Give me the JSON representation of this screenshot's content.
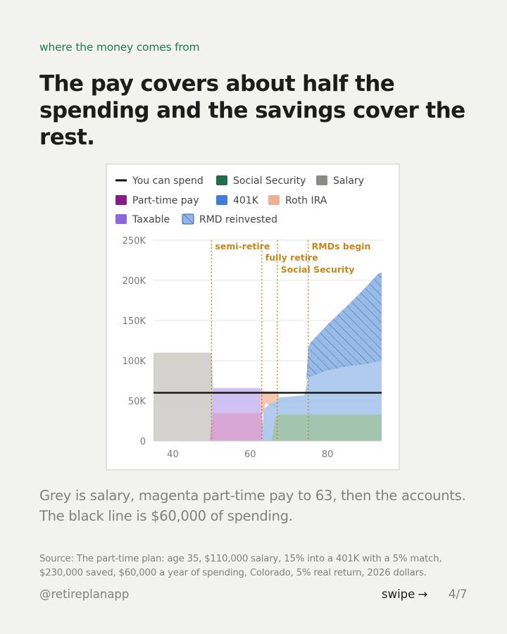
{
  "kicker": "where the money comes from",
  "headline": "The pay covers about half the spending and the savings cover the rest.",
  "caption": "Grey is salary, magenta part-time pay to 63, then the accounts. The black line is $60,000 of spending.",
  "source": "Source: The part-time plan: age 35, $110,000 salary, 15% into a 401K with a 5% match, $230,000 saved, $60,000 a year of spending, Colorado, 5% real return, 2026 dollars.",
  "footer": {
    "handle": "@retireplanapp",
    "swipe_label": "swipe",
    "swipe_arrow": "→",
    "page_indicator": "4/7"
  },
  "colors": {
    "accent_green": "#1f7a4c",
    "spend_line": "#111111",
    "social_security": "#9bbfa8",
    "salary": "#d0cecb",
    "part_time": "#d59fd0",
    "k401": "#a9c7ec",
    "roth": "#f3c2ad",
    "taxable": "#cbbcf3",
    "rmd": "#93b6e6",
    "marker": "#c8861a"
  },
  "chart_data": {
    "type": "area",
    "legend": [
      {
        "key": "spend",
        "label": "You can spend",
        "color": "#111111",
        "style": "line"
      },
      {
        "key": "social_security",
        "label": "Social Security",
        "color": "#226e4c",
        "style": "box"
      },
      {
        "key": "salary",
        "label": "Salary",
        "color": "#8b8a86",
        "style": "box"
      },
      {
        "key": "part_time",
        "label": "Part-time pay",
        "color": "#8a1a86",
        "style": "box"
      },
      {
        "key": "k401",
        "label": "401K",
        "color": "#3d7fd8",
        "style": "box"
      },
      {
        "key": "roth",
        "label": "Roth IRA",
        "color": "#f0ae93",
        "style": "box"
      },
      {
        "key": "taxable",
        "label": "Taxable",
        "color": "#8c67e0",
        "style": "box"
      },
      {
        "key": "rmd",
        "label": "RMD reinvested",
        "color": "#3d7fd8",
        "style": "hatch"
      }
    ],
    "legend_placement": "top",
    "xlim": [
      35,
      94
    ],
    "ylim": [
      0,
      250000
    ],
    "x_ticks": [
      40,
      60,
      80
    ],
    "y_ticks": [
      0,
      50000,
      100000,
      150000,
      200000,
      250000
    ],
    "y_tick_labels": [
      "0",
      "50K",
      "100K",
      "150K",
      "200K",
      "250K"
    ],
    "grid": "horizontal",
    "spend_level": 60000,
    "series": [
      {
        "name": "Salary",
        "key": "salary",
        "points": [
          [
            35,
            0,
            110000
          ],
          [
            50,
            0,
            110000
          ],
          [
            50.5,
            0,
            60000
          ],
          [
            51,
            0,
            0
          ]
        ]
      },
      {
        "name": "Part-time pay",
        "key": "part_time",
        "points": [
          [
            49.5,
            0,
            0
          ],
          [
            50.5,
            0,
            35000
          ],
          [
            63,
            0,
            35000
          ],
          [
            63.5,
            0,
            0
          ]
        ]
      },
      {
        "name": "Taxable",
        "key": "taxable",
        "points": [
          [
            49.5,
            0,
            0
          ],
          [
            50.5,
            35000,
            66000
          ],
          [
            62.5,
            35000,
            66000
          ],
          [
            63.2,
            35000,
            63000
          ],
          [
            63.5,
            35000,
            45000
          ]
        ]
      },
      {
        "name": "Roth IRA",
        "key": "roth",
        "points": [
          [
            62.5,
            50000,
            55000
          ],
          [
            63,
            30000,
            63000
          ],
          [
            64,
            47000,
            62000
          ],
          [
            67,
            40000,
            62000
          ],
          [
            67.5,
            55000,
            57000
          ]
        ]
      },
      {
        "name": "401K",
        "key": "k401",
        "points": [
          [
            63,
            0,
            0
          ],
          [
            63.5,
            0,
            40000
          ],
          [
            65.5,
            0,
            48000
          ],
          [
            66.5,
            30000,
            48000
          ],
          [
            67.5,
            33000,
            54000
          ],
          [
            74,
            33000,
            57000
          ],
          [
            75,
            33000,
            80000
          ],
          [
            77,
            33000,
            88000
          ],
          [
            81,
            33000,
            93000
          ],
          [
            86,
            33000,
            96000
          ],
          [
            94,
            33000,
            100000
          ]
        ]
      },
      {
        "name": "Social Security",
        "key": "social_security",
        "points": [
          [
            65.5,
            0,
            0
          ],
          [
            66.5,
            0,
            30000
          ],
          [
            67.5,
            0,
            33000
          ],
          [
            94,
            0,
            33000
          ]
        ]
      },
      {
        "name": "RMD reinvested",
        "key": "rmd",
        "points": [
          [
            74.5,
            75000,
            75000
          ],
          [
            75,
            80000,
            115000
          ],
          [
            75.5,
            80000,
            122000
          ],
          [
            80,
            88000,
            145000
          ],
          [
            85,
            93000,
            168000
          ],
          [
            90,
            96000,
            192000
          ],
          [
            93,
            99000,
            208000
          ],
          [
            94,
            100000,
            210000
          ]
        ]
      }
    ],
    "annotations": [
      {
        "label": "semi-retire",
        "x": 50
      },
      {
        "label": "fully retire",
        "x": 63
      },
      {
        "label": "Social Security",
        "x": 67
      },
      {
        "label": "RMDs begin",
        "x": 75
      }
    ]
  }
}
